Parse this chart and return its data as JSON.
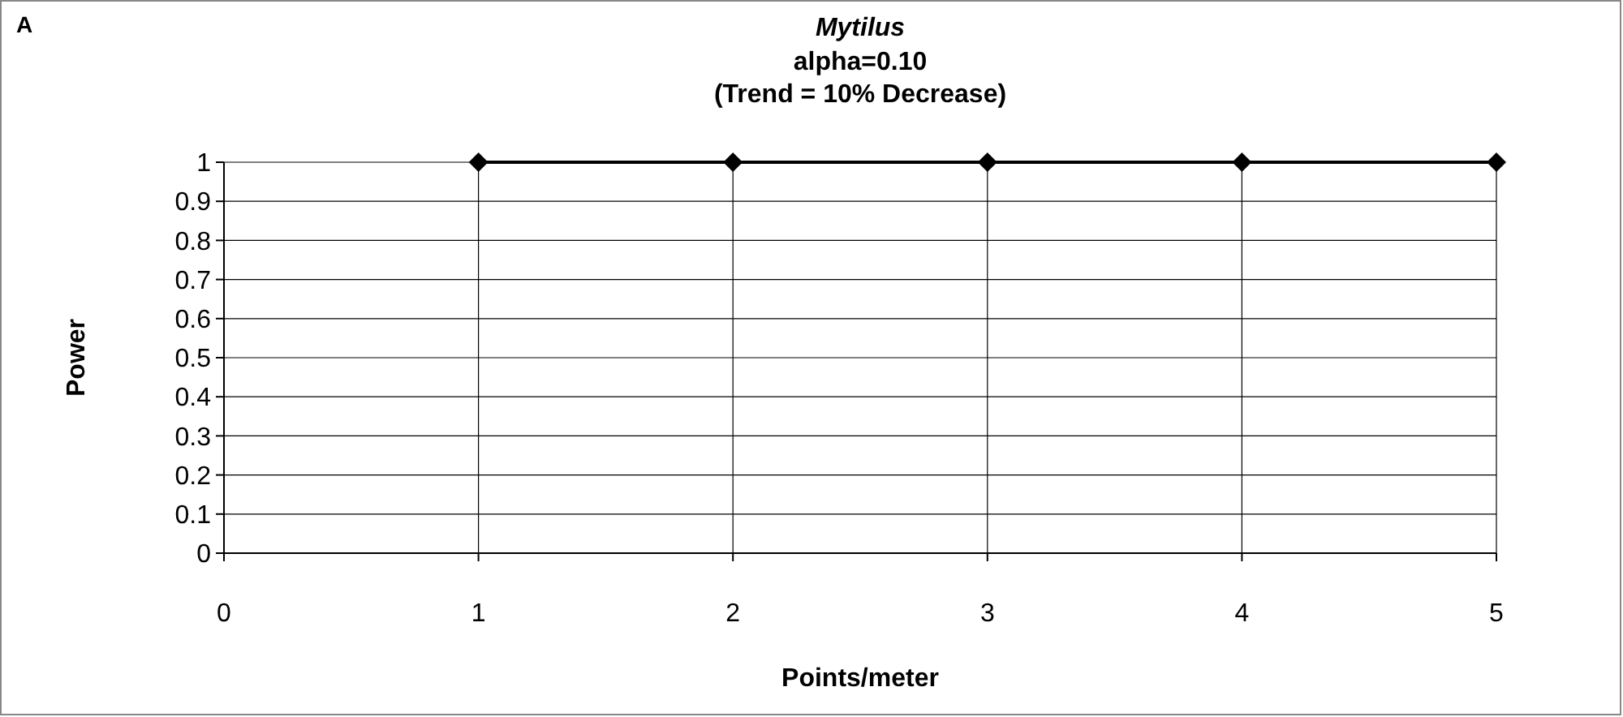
{
  "chart_data": {
    "type": "line",
    "title": "Mytilus",
    "subtitle": "alpha=0.10\n(Trend = 10% Decrease)",
    "xlabel": "Points/meter",
    "ylabel": "Power",
    "annotations": [
      "A"
    ],
    "x": [
      1,
      2,
      3,
      4,
      5
    ],
    "series": [
      {
        "color": "#000000",
        "values": [
          1,
          1,
          1,
          1,
          1
        ]
      }
    ],
    "xlim": [
      0,
      5
    ],
    "xticks": [
      0,
      1,
      2,
      3,
      4,
      5
    ],
    "ylim": [
      0,
      1
    ],
    "yticks": [
      0,
      0.1,
      0.2,
      0.3,
      0.4,
      0.5,
      0.6,
      0.7,
      0.8,
      0.9,
      1
    ],
    "grid": true,
    "marker": "diamond",
    "line_style": "solid"
  }
}
